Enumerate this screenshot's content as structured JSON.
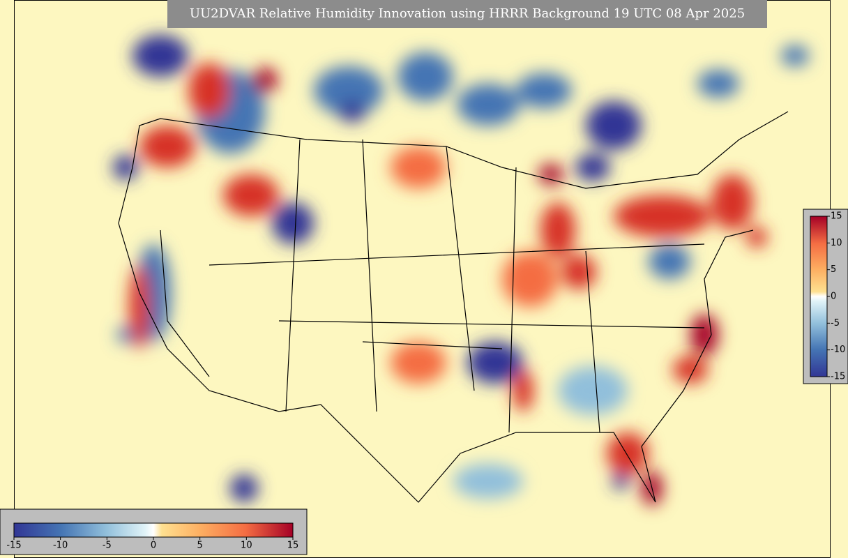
{
  "title": "UU2DVAR Relative Humidity Innovation using HRRR Background 19 UTC 08 Apr 2025",
  "colorbar_horizontal": {
    "lim": [
      -15,
      15
    ],
    "ticks": [
      -15,
      -10,
      -5,
      0,
      5,
      10,
      15
    ]
  },
  "colorbar_vertical": {
    "lim": [
      -15,
      15
    ],
    "ticks": [
      15,
      10,
      5,
      0,
      -5,
      -10,
      -15
    ]
  }
}
